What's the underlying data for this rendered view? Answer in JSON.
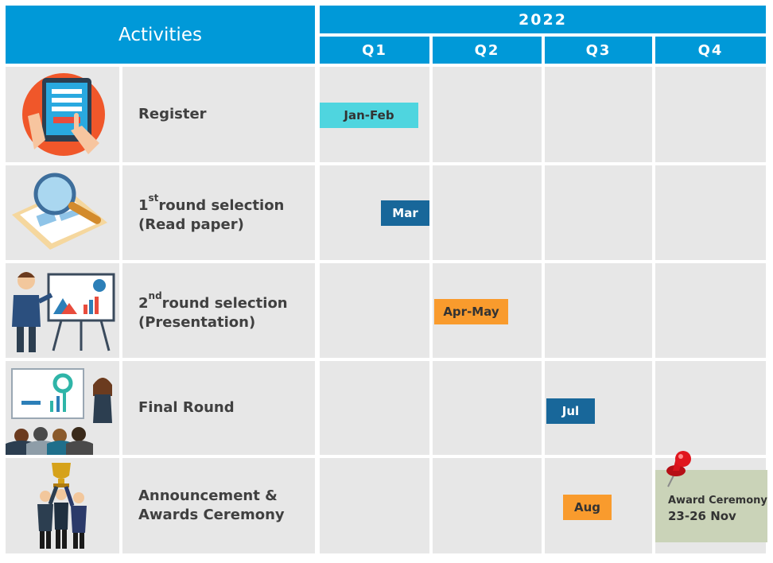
{
  "colors": {
    "header": "#0099d8",
    "cell": "#e7e7e7",
    "text": "#404040",
    "cyan": "#4fd5df",
    "blue": "#18679a",
    "orange": "#f99b2d",
    "olive": "#cad3b8",
    "pin": "#d8141c"
  },
  "header": {
    "activities": "Activities",
    "year": "2022",
    "quarters": [
      "Q1",
      "Q2",
      "Q3",
      "Q4"
    ]
  },
  "activities": [
    {
      "line1": "Register",
      "sup": "",
      "line1_rest": "",
      "line2": "",
      "icon": "tablet-register-icon"
    },
    {
      "line1": "1",
      "sup": "st",
      "line1_rest": "round  selection",
      "line2": "(Read  paper)",
      "icon": "magnifier-paper-icon"
    },
    {
      "line1": "2",
      "sup": "nd",
      "line1_rest": "round  selection",
      "line2": "(Presentation)",
      "icon": "presenter-board-icon"
    },
    {
      "line1": "Final  Round",
      "sup": "",
      "line1_rest": "",
      "line2": "",
      "icon": "audience-presentation-icon"
    },
    {
      "line1": "Announcement  &",
      "sup": "",
      "line1_rest": "",
      "line2": "Awards  Ceremony",
      "icon": "trophy-team-icon"
    }
  ],
  "bars": [
    {
      "label": "Jan-Feb",
      "row": 0,
      "color": "cyan"
    },
    {
      "label": "Mar",
      "row": 1,
      "color": "blue"
    },
    {
      "label": "Apr-May",
      "row": 2,
      "color": "orange"
    },
    {
      "label": "Jul",
      "row": 3,
      "color": "blue"
    },
    {
      "label": "Aug",
      "row": 4,
      "color": "orange"
    }
  ],
  "award": {
    "line1": "Award  Ceremony",
    "line2": "23-26  Nov",
    "icon": "pushpin-icon"
  }
}
